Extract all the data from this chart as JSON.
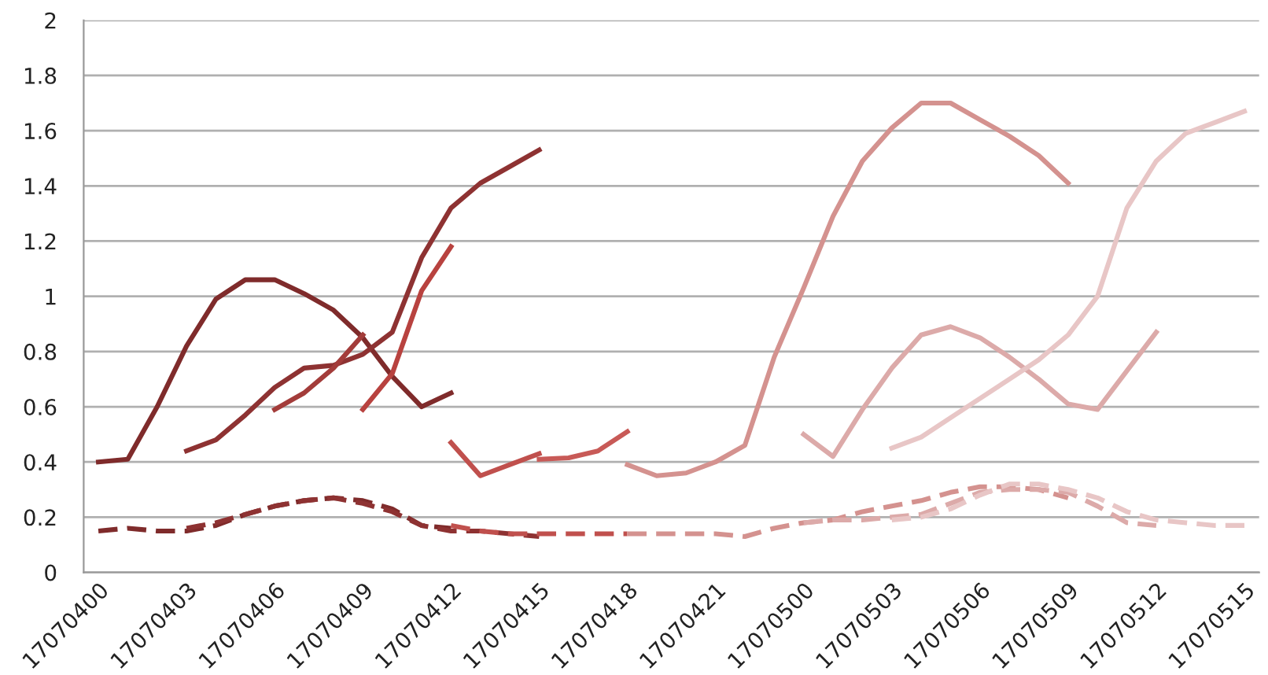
{
  "chart_data": {
    "type": "line",
    "categories": [
      "17070400",
      null,
      null,
      "17070403",
      null,
      null,
      "17070406",
      null,
      null,
      "17070409",
      null,
      null,
      "17070412",
      null,
      null,
      "17070415",
      null,
      null,
      "17070418",
      null,
      null,
      "17070421",
      null,
      null,
      "17070500",
      null,
      null,
      "17070503",
      null,
      null,
      "17070506",
      null,
      null,
      "17070509",
      null,
      null,
      "17070512",
      null,
      null,
      "17070515"
    ],
    "ylim": [
      0,
      2
    ],
    "yticks": [
      0,
      0.2,
      0.4,
      0.6,
      0.8,
      1,
      1.2,
      1.4,
      1.6,
      1.8,
      2
    ],
    "grid": "y",
    "marker": "none",
    "series": [
      {
        "color": "#7f2b2b",
        "line_style": "solid",
        "values": [
          0.4,
          0.41,
          0.6,
          0.82,
          0.99,
          1.06,
          1.06,
          1.01,
          0.95,
          0.85,
          0.71,
          0.6,
          0.65,
          null,
          null,
          null,
          null,
          null,
          null,
          null,
          null,
          null,
          null,
          null,
          null,
          null,
          null,
          null,
          null,
          null,
          null,
          null,
          null,
          null,
          null,
          null,
          null,
          null,
          null,
          null
        ]
      },
      {
        "color": "#8e3232",
        "line_style": "solid",
        "values": [
          null,
          null,
          null,
          0.44,
          0.48,
          0.57,
          0.67,
          0.74,
          0.75,
          0.79,
          0.87,
          1.14,
          1.32,
          1.41,
          1.47,
          1.53,
          null,
          null,
          null,
          null,
          null,
          null,
          null,
          null,
          null,
          null,
          null,
          null,
          null,
          null,
          null,
          null,
          null,
          null,
          null,
          null,
          null,
          null,
          null,
          null
        ]
      },
      {
        "color": "#a33c3a",
        "line_style": "solid",
        "values": [
          null,
          null,
          null,
          null,
          null,
          null,
          0.59,
          0.65,
          0.74,
          0.86,
          null,
          null,
          null,
          null,
          null,
          null,
          null,
          null,
          null,
          null,
          null,
          null,
          null,
          null,
          null,
          null,
          null,
          null,
          null,
          null,
          null,
          null,
          null,
          null,
          null,
          null,
          null,
          null,
          null,
          null
        ]
      },
      {
        "color": "#b8423f",
        "line_style": "solid",
        "values": [
          null,
          null,
          null,
          null,
          null,
          null,
          null,
          null,
          null,
          0.59,
          0.72,
          1.02,
          1.18,
          null,
          null,
          null,
          null,
          null,
          null,
          null,
          null,
          null,
          null,
          null,
          null,
          null,
          null,
          null,
          null,
          null,
          null,
          null,
          null,
          null,
          null,
          null,
          null,
          null,
          null,
          null
        ]
      },
      {
        "color": "#c0504d",
        "line_style": "solid",
        "values": [
          null,
          null,
          null,
          null,
          null,
          null,
          null,
          null,
          null,
          null,
          null,
          null,
          0.47,
          0.35,
          0.39,
          0.43,
          null,
          null,
          null,
          null,
          null,
          null,
          null,
          null,
          null,
          null,
          null,
          null,
          null,
          null,
          null,
          null,
          null,
          null,
          null,
          null,
          null,
          null,
          null,
          null
        ]
      },
      {
        "color": "#c85a57",
        "line_style": "solid",
        "values": [
          null,
          null,
          null,
          null,
          null,
          null,
          null,
          null,
          null,
          null,
          null,
          null,
          null,
          null,
          null,
          0.41,
          0.415,
          0.44,
          0.51,
          null,
          null,
          null,
          null,
          null,
          null,
          null,
          null,
          null,
          null,
          null,
          null,
          null,
          null,
          null,
          null,
          null,
          null,
          null,
          null,
          null
        ]
      },
      {
        "color": "#d4928f",
        "line_style": "solid",
        "values": [
          null,
          null,
          null,
          null,
          null,
          null,
          null,
          null,
          null,
          null,
          null,
          null,
          null,
          null,
          null,
          null,
          null,
          null,
          0.39,
          0.35,
          0.36,
          0.4,
          0.46,
          0.78,
          1.03,
          1.29,
          1.49,
          1.61,
          1.7,
          1.7,
          1.64,
          1.58,
          1.51,
          1.41,
          null,
          null,
          null,
          null,
          null,
          null
        ]
      },
      {
        "color": "#dcaaa9",
        "line_style": "solid",
        "values": [
          null,
          null,
          null,
          null,
          null,
          null,
          null,
          null,
          null,
          null,
          null,
          null,
          null,
          null,
          null,
          null,
          null,
          null,
          null,
          null,
          null,
          null,
          null,
          null,
          0.5,
          0.42,
          0.59,
          0.74,
          0.86,
          0.89,
          0.85,
          0.78,
          0.7,
          0.61,
          0.59,
          0.73,
          0.87,
          null,
          null,
          null
        ]
      },
      {
        "color": "#e8c6c6",
        "line_style": "solid",
        "values": [
          null,
          null,
          null,
          null,
          null,
          null,
          null,
          null,
          null,
          null,
          null,
          null,
          null,
          null,
          null,
          null,
          null,
          null,
          null,
          null,
          null,
          null,
          null,
          null,
          null,
          null,
          null,
          0.45,
          0.49,
          0.56,
          0.63,
          0.7,
          0.77,
          0.86,
          1.0,
          1.32,
          1.49,
          1.59,
          1.63,
          1.67
        ]
      },
      {
        "color": "#7f2b2b",
        "line_style": "dashed",
        "values": [
          0.15,
          0.16,
          0.15,
          0.15,
          0.17,
          0.21,
          0.24,
          0.26,
          0.27,
          0.26,
          0.23,
          0.17,
          0.16,
          null,
          null,
          null,
          null,
          null,
          null,
          null,
          null,
          null,
          null,
          null,
          null,
          null,
          null,
          null,
          null,
          null,
          null,
          null,
          null,
          null,
          null,
          null,
          null,
          null,
          null,
          null
        ]
      },
      {
        "color": "#8e3232",
        "line_style": "dashed",
        "values": [
          null,
          null,
          null,
          0.16,
          0.18,
          0.21,
          0.24,
          0.26,
          0.27,
          0.25,
          0.22,
          0.17,
          0.15,
          0.15,
          0.14,
          0.13,
          null,
          null,
          null,
          null,
          null,
          null,
          null,
          null,
          null,
          null,
          null,
          null,
          null,
          null,
          null,
          null,
          null,
          null,
          null,
          null,
          null,
          null,
          null,
          null
        ]
      },
      {
        "color": "#c0504d",
        "line_style": "dashed",
        "values": [
          null,
          null,
          null,
          null,
          null,
          null,
          null,
          null,
          null,
          null,
          null,
          null,
          0.17,
          0.15,
          0.14,
          0.14,
          0.14,
          0.14,
          0.14,
          null,
          null,
          null,
          null,
          null,
          null,
          null,
          null,
          null,
          null,
          null,
          null,
          null,
          null,
          null,
          null,
          null,
          null,
          null,
          null,
          null
        ]
      },
      {
        "color": "#d4928f",
        "line_style": "dashed",
        "values": [
          null,
          null,
          null,
          null,
          null,
          null,
          null,
          null,
          null,
          null,
          null,
          null,
          null,
          null,
          null,
          null,
          null,
          null,
          0.14,
          0.14,
          0.14,
          0.14,
          0.13,
          0.16,
          0.18,
          0.19,
          0.22,
          0.24,
          0.26,
          0.29,
          0.31,
          0.31,
          0.3,
          0.27,
          null,
          null,
          null,
          null,
          null,
          null
        ]
      },
      {
        "color": "#dcaaa9",
        "line_style": "dashed",
        "values": [
          null,
          null,
          null,
          null,
          null,
          null,
          null,
          null,
          null,
          null,
          null,
          null,
          null,
          null,
          null,
          null,
          null,
          null,
          null,
          null,
          null,
          null,
          null,
          null,
          0.18,
          0.19,
          0.19,
          0.2,
          0.21,
          0.25,
          0.29,
          0.3,
          0.3,
          0.29,
          0.24,
          0.18,
          0.17,
          null,
          null,
          null
        ]
      },
      {
        "color": "#e8c6c6",
        "line_style": "dashed",
        "values": [
          null,
          null,
          null,
          null,
          null,
          null,
          null,
          null,
          null,
          null,
          null,
          null,
          null,
          null,
          null,
          null,
          null,
          null,
          null,
          null,
          null,
          null,
          null,
          null,
          null,
          null,
          null,
          0.19,
          0.2,
          0.23,
          0.28,
          0.32,
          0.32,
          0.3,
          0.27,
          0.22,
          0.19,
          0.18,
          0.17,
          0.17
        ]
      }
    ]
  }
}
